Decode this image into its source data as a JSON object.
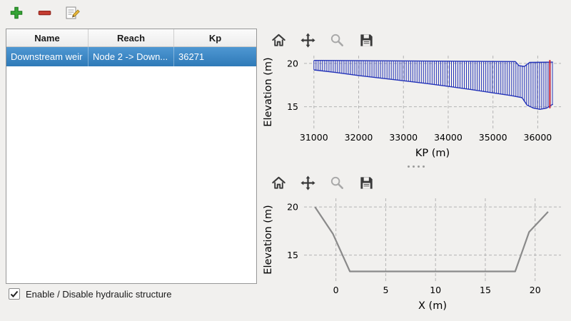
{
  "window": {
    "background": "#f1f0ee",
    "selection_color": "#3b86c4"
  },
  "main_toolbar": {
    "buttons": [
      {
        "name": "add",
        "icon": "plus-icon",
        "color": "#35a435"
      },
      {
        "name": "remove",
        "icon": "minus-icon",
        "color": "#c43c30"
      },
      {
        "name": "edit",
        "icon": "edit-icon",
        "color": "#e8b63a"
      }
    ]
  },
  "table": {
    "headers": [
      "Name",
      "Reach",
      "Kp"
    ],
    "rows": [
      {
        "name": "Downstream weir",
        "reach": "Node 2 -> Down...",
        "kp": "36271"
      }
    ],
    "selected_row": 0
  },
  "checkbox": {
    "label": "Enable / Disable hydraulic structure",
    "checked": true
  },
  "chart_toolbar": {
    "buttons": [
      {
        "name": "home",
        "icon": "home-icon"
      },
      {
        "name": "pan",
        "icon": "move-icon"
      },
      {
        "name": "zoom",
        "icon": "magnifier-icon",
        "disabled": true
      },
      {
        "name": "save",
        "icon": "save-icon"
      }
    ]
  },
  "chart_data": [
    {
      "type": "area",
      "title": "",
      "xlabel": "KP (m)",
      "ylabel": "Elevation (m)",
      "xlim": [
        30780,
        36520
      ],
      "ylim": [
        12.5,
        20.9
      ],
      "xticks": [
        31000,
        32000,
        33000,
        34000,
        35000,
        36000
      ],
      "yticks": [
        15,
        20
      ],
      "grid": "dashed",
      "hatch_color": "#2433b8",
      "hatch_step_m": 48,
      "top_profile": {
        "x": [
          31000,
          35500,
          35580,
          35700,
          35820,
          36340
        ],
        "y": [
          20.35,
          20.22,
          19.75,
          19.65,
          20.12,
          20.15
        ]
      },
      "bottom_profile": {
        "x": [
          31000,
          31500,
          32000,
          32500,
          33000,
          33500,
          34000,
          34500,
          35000,
          35400,
          35650,
          35760,
          35900,
          36050,
          36200,
          36340
        ],
        "y": [
          19.25,
          18.95,
          18.6,
          18.3,
          18.0,
          17.7,
          17.35,
          17.0,
          16.6,
          16.3,
          16.05,
          15.2,
          14.85,
          14.7,
          14.85,
          15.3
        ]
      },
      "marker_line": {
        "x": 36271,
        "color": "#cc2233"
      }
    },
    {
      "type": "line",
      "title": "",
      "xlabel": "X (m)",
      "ylabel": "Elevation (m)",
      "xlim": [
        -3.2,
        22.6
      ],
      "ylim": [
        12.3,
        20.9
      ],
      "xticks": [
        0,
        5,
        10,
        15,
        20
      ],
      "yticks": [
        15,
        20
      ],
      "grid": "dashed",
      "line_color": "#8a8a8a",
      "x": [
        -2.1,
        -0.3,
        1.4,
        18.0,
        19.4,
        21.3
      ],
      "y": [
        20.0,
        17.2,
        13.3,
        13.3,
        17.4,
        19.5
      ]
    }
  ]
}
